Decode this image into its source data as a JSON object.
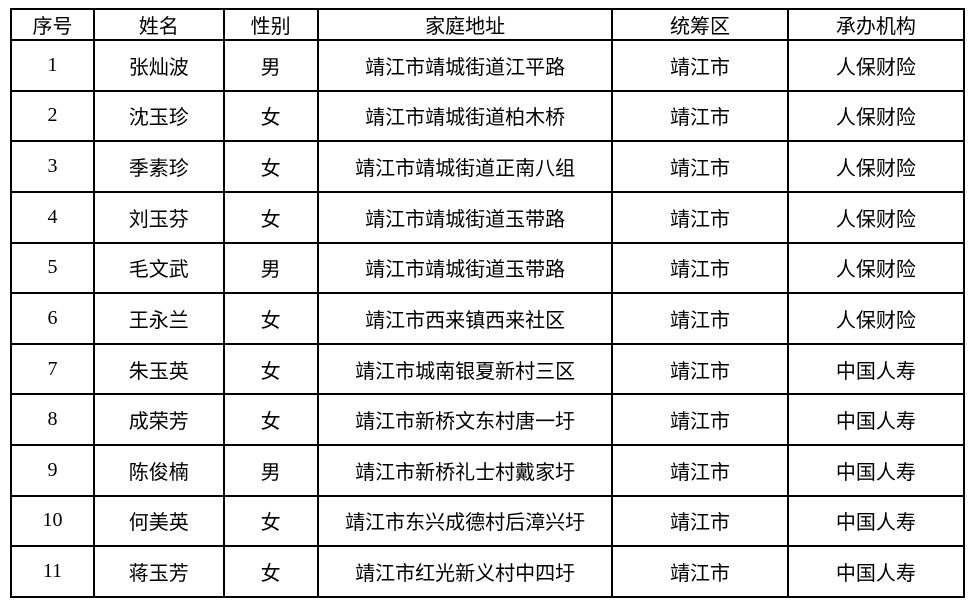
{
  "colors": {
    "background": "#ffffff",
    "border": "#000000",
    "text": "#000000"
  },
  "table": {
    "headers": [
      "序号",
      "姓名",
      "性别",
      "家庭地址",
      "统筹区",
      "承办机构"
    ],
    "rows": [
      [
        "1",
        "张灿波",
        "男",
        "靖江市靖城街道江平路",
        "靖江市",
        "人保财险"
      ],
      [
        "2",
        "沈玉珍",
        "女",
        "靖江市靖城街道柏木桥",
        "靖江市",
        "人保财险"
      ],
      [
        "3",
        "季素珍",
        "女",
        "靖江市靖城街道正南八组",
        "靖江市",
        "人保财险"
      ],
      [
        "4",
        "刘玉芬",
        "女",
        "靖江市靖城街道玉带路",
        "靖江市",
        "人保财险"
      ],
      [
        "5",
        "毛文武",
        "男",
        "靖江市靖城街道玉带路",
        "靖江市",
        "人保财险"
      ],
      [
        "6",
        "王永兰",
        "女",
        "靖江市西来镇西来社区",
        "靖江市",
        "人保财险"
      ],
      [
        "7",
        "朱玉英",
        "女",
        "靖江市城南银夏新村三区",
        "靖江市",
        "中国人寿"
      ],
      [
        "8",
        "成荣芳",
        "女",
        "靖江市新桥文东村唐一圩",
        "靖江市",
        "中国人寿"
      ],
      [
        "9",
        "陈俊楠",
        "男",
        "靖江市新桥礼士村戴家圩",
        "靖江市",
        "中国人寿"
      ],
      [
        "10",
        "何美英",
        "女",
        "靖江市东兴成德村后漳兴圩",
        "靖江市",
        "中国人寿"
      ],
      [
        "11",
        "蒋玉芳",
        "女",
        "靖江市红光新义村中四圩",
        "靖江市",
        "中国人寿"
      ]
    ]
  }
}
